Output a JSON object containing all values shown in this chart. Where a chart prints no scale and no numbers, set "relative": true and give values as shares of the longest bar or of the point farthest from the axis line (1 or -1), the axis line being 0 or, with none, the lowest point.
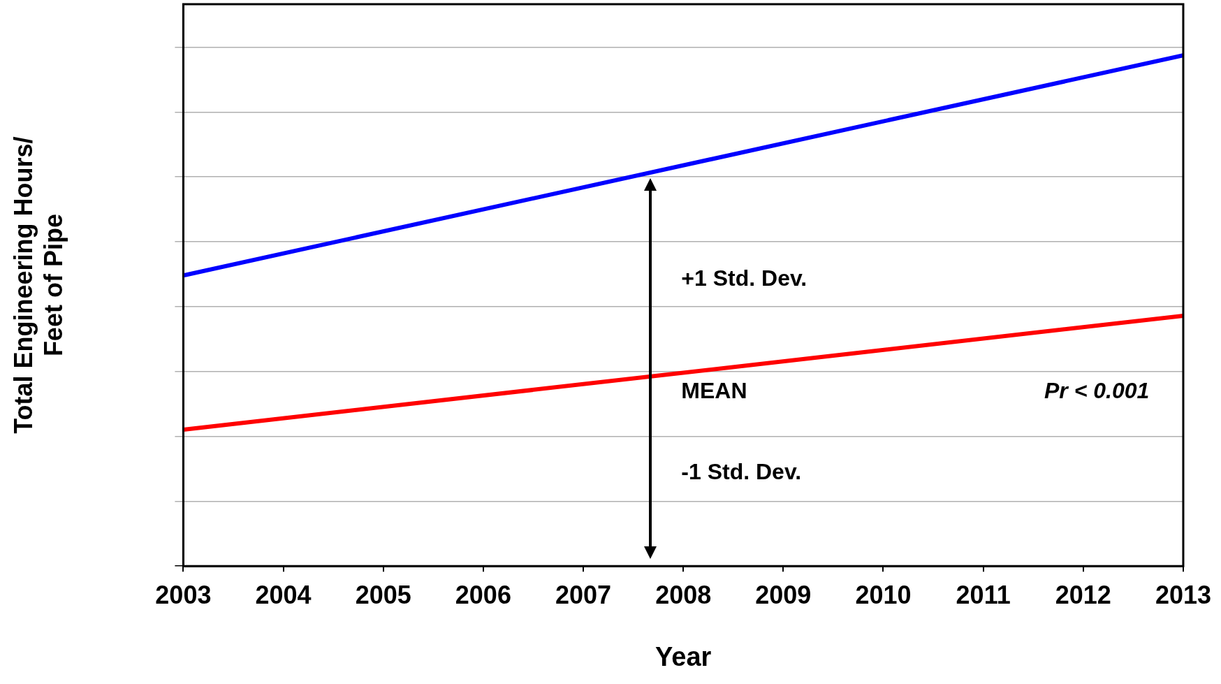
{
  "chart_data": {
    "type": "line",
    "relative": true,
    "xlabel": "Year",
    "ylabel": "Total Engineering Hours/\nFeet of Pipe",
    "x": [
      2003,
      2013
    ],
    "xlim": [
      2003,
      2013
    ],
    "xticks": [
      2003,
      2004,
      2005,
      2006,
      2007,
      2008,
      2009,
      2010,
      2011,
      2012,
      2013
    ],
    "series": [
      {
        "color": "#0000ff",
        "values": [
          0.569,
          1
        ]
      },
      {
        "color": "#ff0000",
        "values": [
          0.267,
          0.49
        ]
      }
    ],
    "annotations": [
      "+1 Std. Dev.",
      "MEAN",
      "-1 Std. Dev.",
      "Pr < 0.001"
    ],
    "grid": "y",
    "legend": false,
    "marker": "none",
    "line_style": "solid",
    "tick_labels": "x"
  }
}
